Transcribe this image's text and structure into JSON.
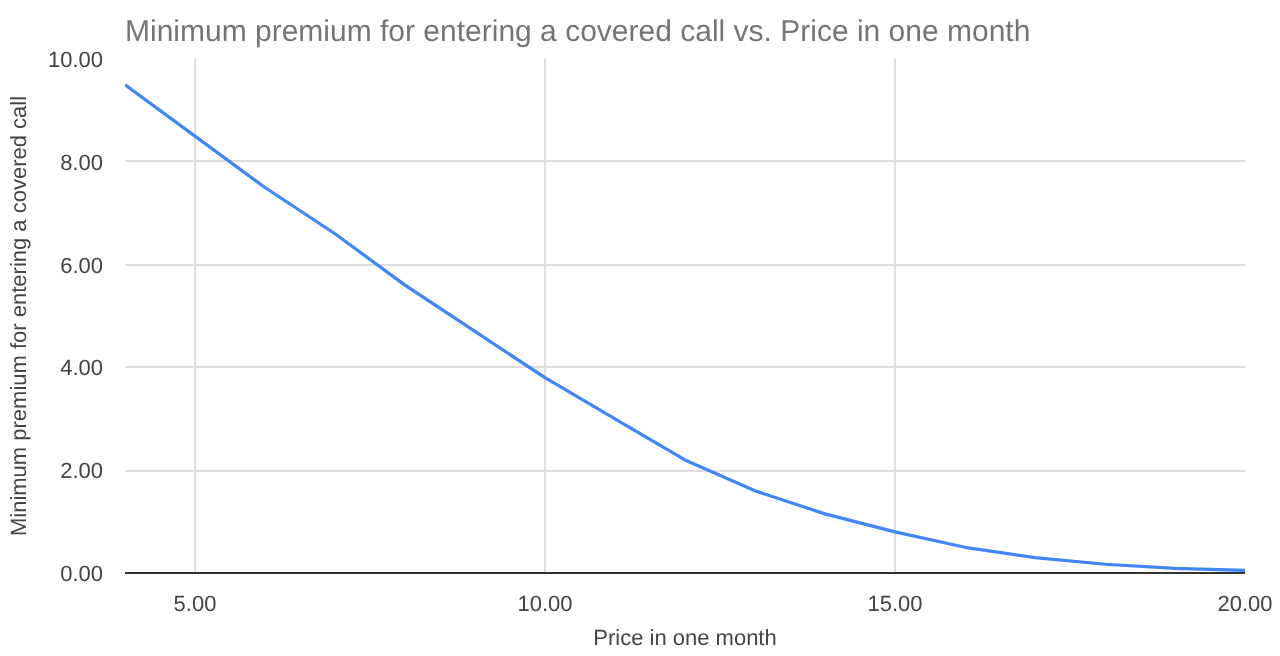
{
  "chart_data": {
    "type": "line",
    "title": "Minimum premium for entering a covered call vs. Price in one month",
    "xlabel": "Price in one month",
    "ylabel": "Minimum premium for entering a covered call",
    "x": [
      4,
      5,
      6,
      7,
      8,
      9,
      10,
      11,
      12,
      13,
      14,
      15,
      16,
      17,
      18,
      19,
      20
    ],
    "series": [
      {
        "color": "#4285f4",
        "values": [
          9.5,
          8.5,
          7.5,
          6.6,
          5.6,
          4.7,
          3.8,
          3.0,
          2.2,
          1.6,
          1.15,
          0.8,
          0.5,
          0.3,
          0.17,
          0.09,
          0.05
        ]
      }
    ],
    "xlim": [
      4,
      20
    ],
    "ylim": [
      0,
      10
    ],
    "xticks": [
      {
        "value": 5,
        "label": "5.00"
      },
      {
        "value": 10,
        "label": "10.00"
      },
      {
        "value": 15,
        "label": "15.00"
      },
      {
        "value": 20,
        "label": "20.00"
      }
    ],
    "yticks": [
      {
        "value": 0,
        "label": "0.00"
      },
      {
        "value": 2,
        "label": "2.00"
      },
      {
        "value": 4,
        "label": "4.00"
      },
      {
        "value": 6,
        "label": "6.00"
      },
      {
        "value": 8,
        "label": "8.00"
      },
      {
        "value": 10,
        "label": "10.00"
      }
    ],
    "grid": true,
    "marker": "none",
    "line_style": "solid"
  }
}
